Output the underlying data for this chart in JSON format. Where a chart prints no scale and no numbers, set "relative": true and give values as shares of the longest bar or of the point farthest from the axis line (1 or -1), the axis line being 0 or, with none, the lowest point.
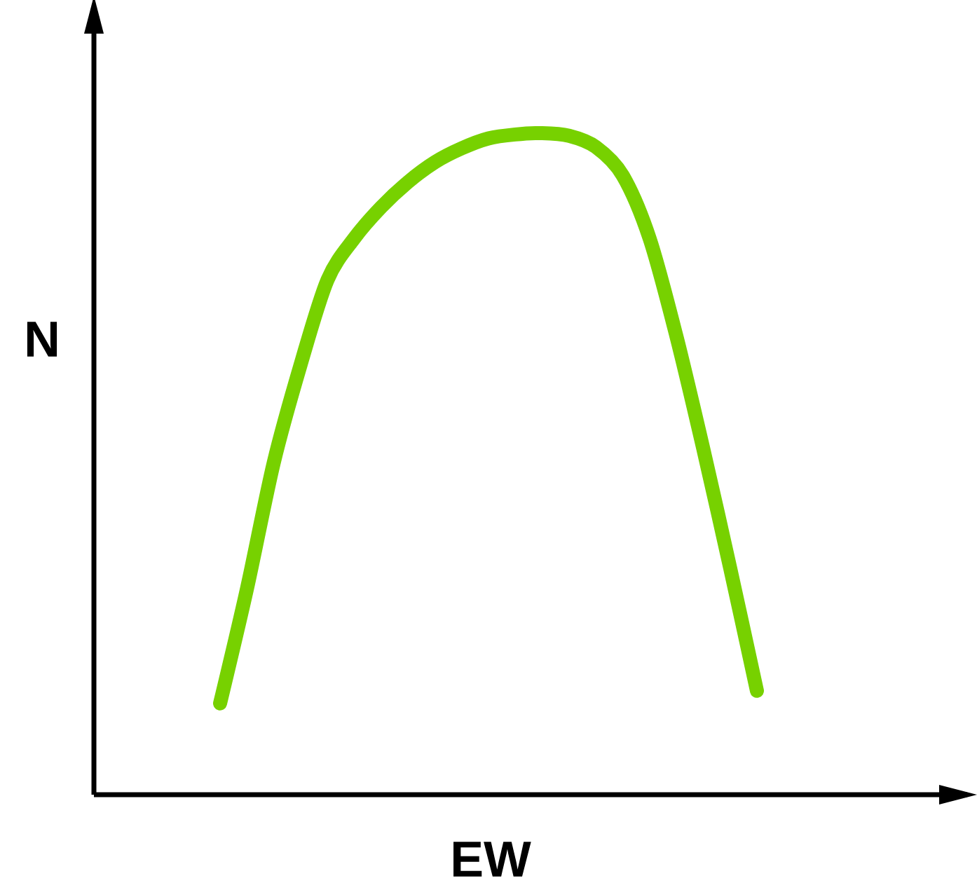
{
  "chart_data": {
    "type": "line",
    "relative": true,
    "xlabel": "EW",
    "ylabel": "N",
    "categories": [
      null,
      null,
      null,
      null,
      null,
      null,
      null,
      null,
      null,
      null,
      null,
      null,
      null,
      null,
      null,
      null,
      null,
      null,
      null,
      null,
      null
    ],
    "series": [
      {
        "color": "#77d100",
        "values": [
          0.138,
          0.311,
          0.502,
          0.65,
          0.778,
          0.841,
          0.888,
          0.926,
          0.956,
          0.977,
          0.992,
          0.998,
          1,
          0.996,
          0.979,
          0.936,
          0.841,
          0.693,
          0.523,
          0.343,
          0.157
        ]
      }
    ]
  }
}
